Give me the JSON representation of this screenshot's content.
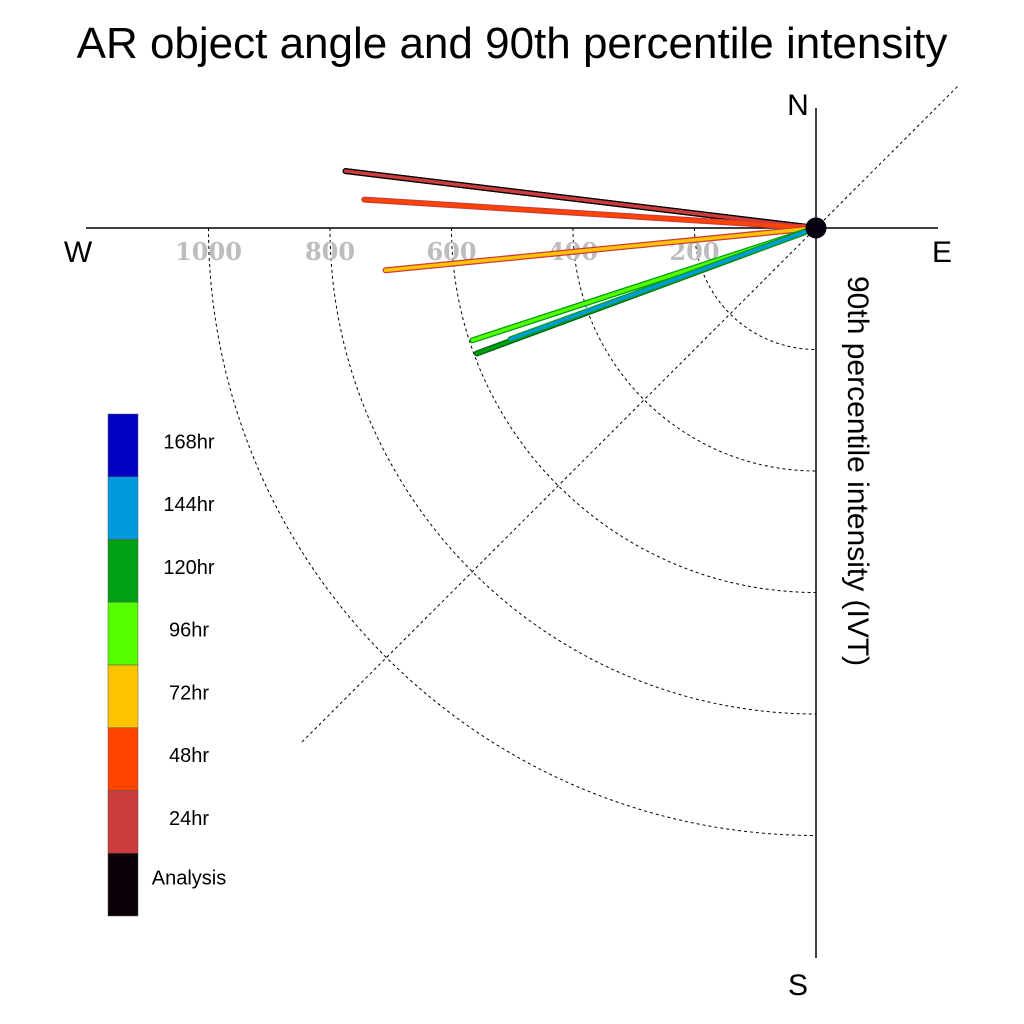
{
  "chart_data": {
    "type": "polar-line",
    "title": "AR object angle and 90th percentile intensity",
    "radial_label": "90th percentile intensity (IVT)",
    "compass": {
      "north": "N",
      "south": "S",
      "east": "E",
      "west": "W"
    },
    "radial_ticks": [
      200,
      400,
      600,
      800,
      1000
    ],
    "radial_max": 1200,
    "grid": true,
    "legend_position": "left",
    "series": [
      {
        "name": "Analysis",
        "color": "#0a0008",
        "angle_deg": 6.9,
        "intensity": 780,
        "outline": "#000000"
      },
      {
        "name": "24hr",
        "color": "#cc3c3c",
        "angle_deg": 6.9,
        "intensity": 780,
        "outline": "#000000"
      },
      {
        "name": "48hr",
        "color": "#ff4400",
        "angle_deg": 3.6,
        "intensity": 745,
        "outline": "#cc3c3c"
      },
      {
        "name": "72hr",
        "color": "#ffc400",
        "angle_deg": -5.6,
        "intensity": 712,
        "outline": "#cc3c3c"
      },
      {
        "name": "96hr",
        "color": "#55ff00",
        "angle_deg": -18.1,
        "intensity": 595,
        "outline": "#009f14"
      },
      {
        "name": "120hr",
        "color": "#009f14",
        "angle_deg": -20.3,
        "intensity": 595,
        "outline": "#006010"
      },
      {
        "name": "144hr",
        "color": "#0099dd",
        "angle_deg": -20.0,
        "intensity": 535,
        "outline": "#009f14"
      }
    ],
    "legend": [
      {
        "name": "168hr",
        "color": "#0000c4"
      },
      {
        "name": "144hr",
        "color": "#0099dd"
      },
      {
        "name": "120hr",
        "color": "#009f14"
      },
      {
        "name": "96hr",
        "color": "#55ff00"
      },
      {
        "name": "72hr",
        "color": "#ffc400"
      },
      {
        "name": "48hr",
        "color": "#ff4400"
      },
      {
        "name": "24hr",
        "color": "#cc3c3c"
      },
      {
        "name": "Analysis",
        "color": "#0a0008"
      }
    ]
  }
}
